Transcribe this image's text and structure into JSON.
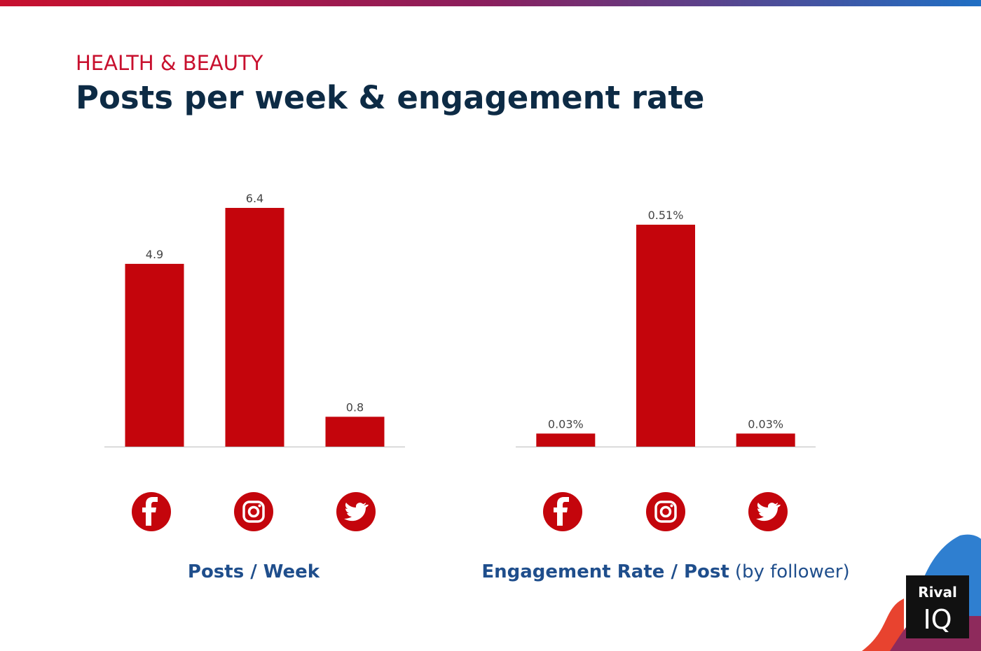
{
  "header": {
    "kicker": "HEALTH & BEAUTY",
    "title": "Posts per week & engagement rate"
  },
  "chart_data": [
    {
      "type": "bar",
      "categories": [
        null,
        null,
        null
      ],
      "values": [
        4.9,
        6.4,
        0.8
      ],
      "color": "#c4050c",
      "x_label": "Posts / Week"
    },
    {
      "type": "bar",
      "categories": [
        null,
        null,
        null
      ],
      "values": [
        0.03,
        0.51,
        0.03
      ],
      "value_labels": [
        "0.03%",
        "0.51%",
        "0.03%"
      ],
      "color": "#c4050c",
      "x_label": "Engagement Rate / Post",
      "x_label_note": "(by follower)"
    }
  ],
  "logo": {
    "line1": "Rival",
    "line2": "IQ"
  }
}
